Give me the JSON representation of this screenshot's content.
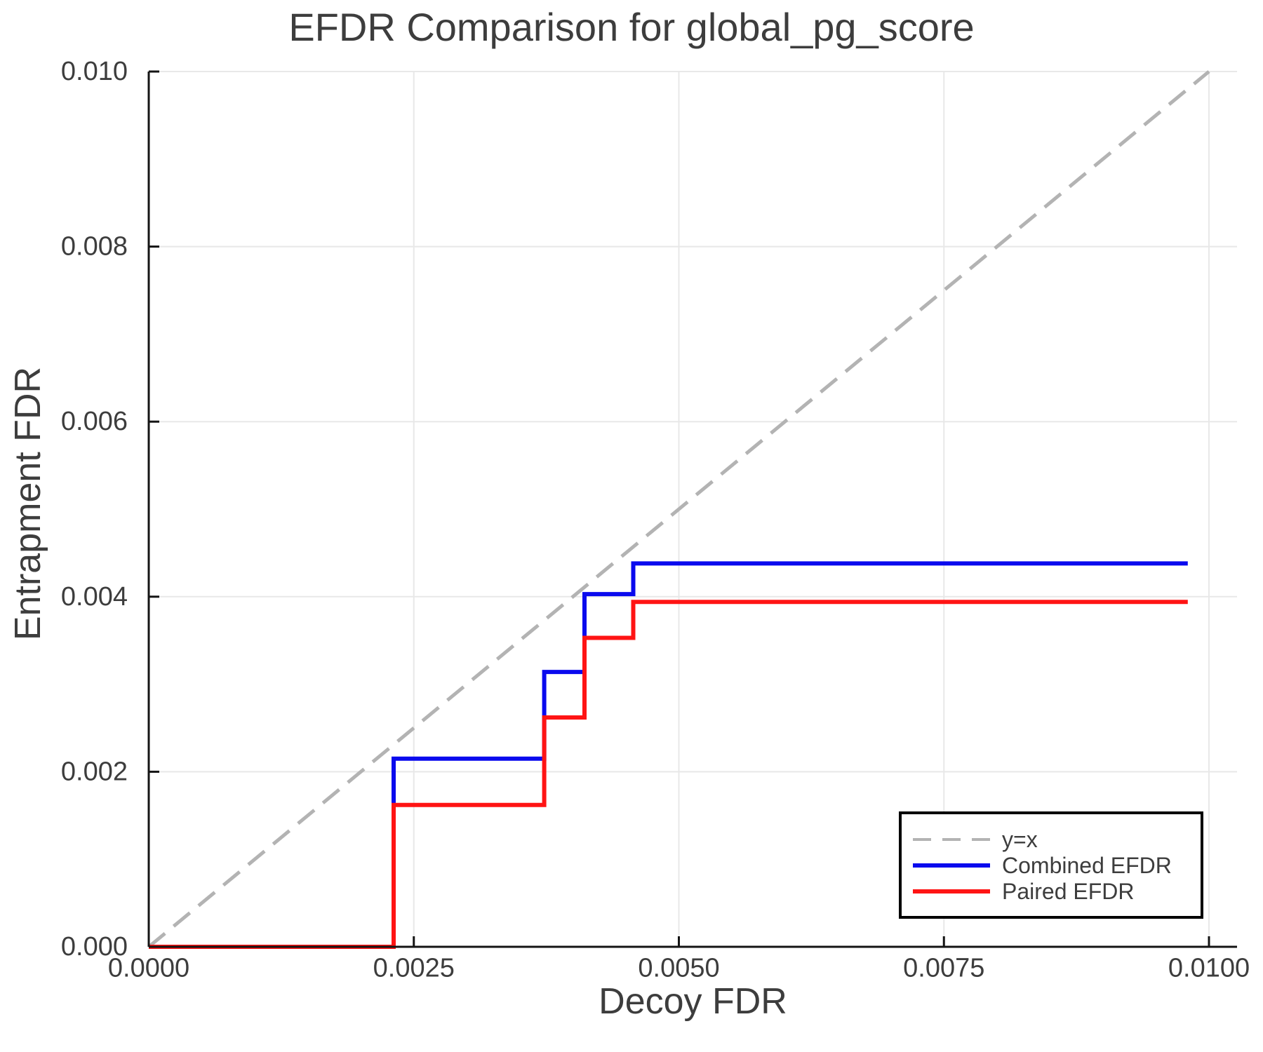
{
  "chart_data": {
    "type": "line",
    "title": "EFDR Comparison for global_pg_score",
    "xlabel": "Decoy FDR",
    "ylabel": "Entrapment FDR",
    "xlim": [
      0.0,
      0.01026
    ],
    "ylim": [
      0.0,
      0.01
    ],
    "grid": true,
    "legend_position": "bottom-right",
    "xticks": [
      {
        "value": 0.0,
        "label": "0.0000"
      },
      {
        "value": 0.0025,
        "label": "0.0025"
      },
      {
        "value": 0.005,
        "label": "0.0050"
      },
      {
        "value": 0.0075,
        "label": "0.0075"
      },
      {
        "value": 0.01,
        "label": "0.0100"
      }
    ],
    "yticks": [
      {
        "value": 0.0,
        "label": "0.000"
      },
      {
        "value": 0.002,
        "label": "0.002"
      },
      {
        "value": 0.004,
        "label": "0.004"
      },
      {
        "value": 0.006,
        "label": "0.006"
      },
      {
        "value": 0.008,
        "label": "0.008"
      },
      {
        "value": 0.01,
        "label": "0.010"
      }
    ],
    "series": [
      {
        "name": "y=x",
        "color": "#b3b3b3",
        "style": "dashed",
        "points": [
          [
            0.0,
            0.0
          ],
          [
            0.01,
            0.01
          ]
        ]
      },
      {
        "name": "Combined EFDR",
        "color": "#0a0aee",
        "style": "solid",
        "points": [
          [
            0.0,
            0.0
          ],
          [
            0.00231,
            0.0
          ],
          [
            0.00231,
            0.00215
          ],
          [
            0.00373,
            0.00215
          ],
          [
            0.00373,
            0.00314
          ],
          [
            0.00411,
            0.00314
          ],
          [
            0.00411,
            0.00403
          ],
          [
            0.00457,
            0.00403
          ],
          [
            0.00457,
            0.00438
          ],
          [
            0.0098,
            0.00438
          ]
        ]
      },
      {
        "name": "Paired EFDR",
        "color": "#ff1414",
        "style": "solid",
        "points": [
          [
            0.0,
            0.0
          ],
          [
            0.00231,
            0.0
          ],
          [
            0.00231,
            0.00162
          ],
          [
            0.00373,
            0.00162
          ],
          [
            0.00373,
            0.00262
          ],
          [
            0.00411,
            0.00262
          ],
          [
            0.00411,
            0.00353
          ],
          [
            0.00457,
            0.00353
          ],
          [
            0.00457,
            0.00394
          ],
          [
            0.0098,
            0.00394
          ]
        ]
      }
    ]
  },
  "theme": {
    "grid_color": "#e8e8e8",
    "spine_color": "#141414",
    "text_color": "#3d3d3d",
    "legend_border": "#000000",
    "background": "#ffffff"
  }
}
